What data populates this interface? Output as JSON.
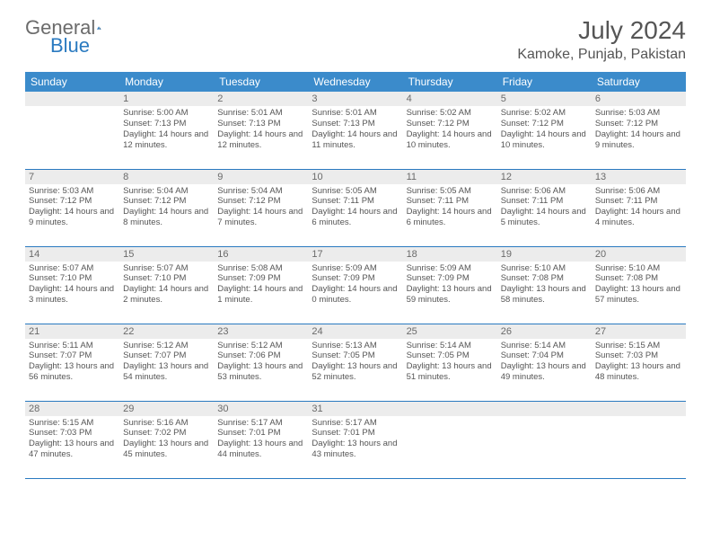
{
  "logo": {
    "left": "General",
    "right": "Blue"
  },
  "title": "July 2024",
  "location": "Kamoke, Punjab, Pakistan",
  "colors": {
    "header_bg": "#3b8bcb",
    "header_text": "#ffffff",
    "daynum_bg": "#ececec",
    "border": "#2a7ac0",
    "text": "#555555"
  },
  "weekdays": [
    "Sunday",
    "Monday",
    "Tuesday",
    "Wednesday",
    "Thursday",
    "Friday",
    "Saturday"
  ],
  "weeks": [
    [
      null,
      {
        "d": "1",
        "sr": "5:00 AM",
        "ss": "7:13 PM",
        "dl": "14 hours and 12 minutes."
      },
      {
        "d": "2",
        "sr": "5:01 AM",
        "ss": "7:13 PM",
        "dl": "14 hours and 12 minutes."
      },
      {
        "d": "3",
        "sr": "5:01 AM",
        "ss": "7:13 PM",
        "dl": "14 hours and 11 minutes."
      },
      {
        "d": "4",
        "sr": "5:02 AM",
        "ss": "7:12 PM",
        "dl": "14 hours and 10 minutes."
      },
      {
        "d": "5",
        "sr": "5:02 AM",
        "ss": "7:12 PM",
        "dl": "14 hours and 10 minutes."
      },
      {
        "d": "6",
        "sr": "5:03 AM",
        "ss": "7:12 PM",
        "dl": "14 hours and 9 minutes."
      }
    ],
    [
      {
        "d": "7",
        "sr": "5:03 AM",
        "ss": "7:12 PM",
        "dl": "14 hours and 9 minutes."
      },
      {
        "d": "8",
        "sr": "5:04 AM",
        "ss": "7:12 PM",
        "dl": "14 hours and 8 minutes."
      },
      {
        "d": "9",
        "sr": "5:04 AM",
        "ss": "7:12 PM",
        "dl": "14 hours and 7 minutes."
      },
      {
        "d": "10",
        "sr": "5:05 AM",
        "ss": "7:11 PM",
        "dl": "14 hours and 6 minutes."
      },
      {
        "d": "11",
        "sr": "5:05 AM",
        "ss": "7:11 PM",
        "dl": "14 hours and 6 minutes."
      },
      {
        "d": "12",
        "sr": "5:06 AM",
        "ss": "7:11 PM",
        "dl": "14 hours and 5 minutes."
      },
      {
        "d": "13",
        "sr": "5:06 AM",
        "ss": "7:11 PM",
        "dl": "14 hours and 4 minutes."
      }
    ],
    [
      {
        "d": "14",
        "sr": "5:07 AM",
        "ss": "7:10 PM",
        "dl": "14 hours and 3 minutes."
      },
      {
        "d": "15",
        "sr": "5:07 AM",
        "ss": "7:10 PM",
        "dl": "14 hours and 2 minutes."
      },
      {
        "d": "16",
        "sr": "5:08 AM",
        "ss": "7:09 PM",
        "dl": "14 hours and 1 minute."
      },
      {
        "d": "17",
        "sr": "5:09 AM",
        "ss": "7:09 PM",
        "dl": "14 hours and 0 minutes."
      },
      {
        "d": "18",
        "sr": "5:09 AM",
        "ss": "7:09 PM",
        "dl": "13 hours and 59 minutes."
      },
      {
        "d": "19",
        "sr": "5:10 AM",
        "ss": "7:08 PM",
        "dl": "13 hours and 58 minutes."
      },
      {
        "d": "20",
        "sr": "5:10 AM",
        "ss": "7:08 PM",
        "dl": "13 hours and 57 minutes."
      }
    ],
    [
      {
        "d": "21",
        "sr": "5:11 AM",
        "ss": "7:07 PM",
        "dl": "13 hours and 56 minutes."
      },
      {
        "d": "22",
        "sr": "5:12 AM",
        "ss": "7:07 PM",
        "dl": "13 hours and 54 minutes."
      },
      {
        "d": "23",
        "sr": "5:12 AM",
        "ss": "7:06 PM",
        "dl": "13 hours and 53 minutes."
      },
      {
        "d": "24",
        "sr": "5:13 AM",
        "ss": "7:05 PM",
        "dl": "13 hours and 52 minutes."
      },
      {
        "d": "25",
        "sr": "5:14 AM",
        "ss": "7:05 PM",
        "dl": "13 hours and 51 minutes."
      },
      {
        "d": "26",
        "sr": "5:14 AM",
        "ss": "7:04 PM",
        "dl": "13 hours and 49 minutes."
      },
      {
        "d": "27",
        "sr": "5:15 AM",
        "ss": "7:03 PM",
        "dl": "13 hours and 48 minutes."
      }
    ],
    [
      {
        "d": "28",
        "sr": "5:15 AM",
        "ss": "7:03 PM",
        "dl": "13 hours and 47 minutes."
      },
      {
        "d": "29",
        "sr": "5:16 AM",
        "ss": "7:02 PM",
        "dl": "13 hours and 45 minutes."
      },
      {
        "d": "30",
        "sr": "5:17 AM",
        "ss": "7:01 PM",
        "dl": "13 hours and 44 minutes."
      },
      {
        "d": "31",
        "sr": "5:17 AM",
        "ss": "7:01 PM",
        "dl": "13 hours and 43 minutes."
      },
      null,
      null,
      null
    ]
  ],
  "labels": {
    "sunrise": "Sunrise: ",
    "sunset": "Sunset: ",
    "daylight": "Daylight: "
  }
}
